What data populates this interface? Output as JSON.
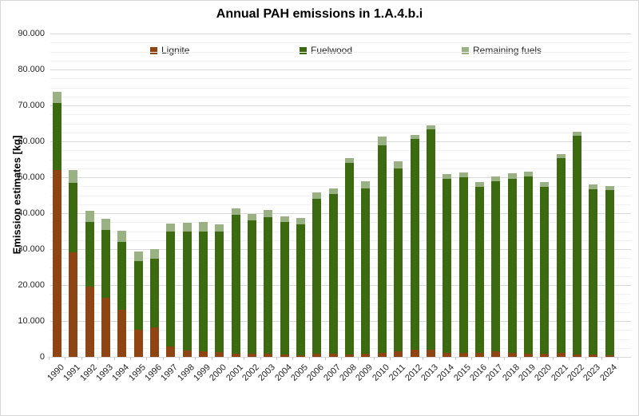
{
  "page": {
    "background": "#FFFFFF",
    "border_color": "#D8D8D8"
  },
  "chart_data": {
    "type": "bar",
    "stacked": true,
    "title": "Annual PAH emissions in 1.A.4.b.i",
    "xlabel": "",
    "ylabel": "Emission estimates [kg]",
    "ylim": [
      0,
      90000
    ],
    "ytick_interval": 10000,
    "minor_gridline_interval": 2500,
    "grid": "horizontal",
    "grid_color_major": "#D9D9D9",
    "grid_color_minor": "#F1F1F1",
    "legend_position": "top",
    "ytick_labels": [
      "0",
      "10.000",
      "20.000",
      "30.000",
      "40.000",
      "50.000",
      "60.000",
      "70.000",
      "80.000",
      "90.000"
    ],
    "categories": [
      1990,
      1991,
      1992,
      1993,
      1994,
      1995,
      1996,
      1997,
      1998,
      1999,
      2000,
      2001,
      2002,
      2003,
      2004,
      2005,
      2006,
      2007,
      2008,
      2009,
      2010,
      2011,
      2012,
      2013,
      2014,
      2015,
      2016,
      2017,
      2018,
      2019,
      2020,
      2021,
      2022,
      2023,
      2024
    ],
    "series": [
      {
        "name": "Lignite",
        "color": "#8F4413",
        "values": [
          52000,
          29100,
          19500,
          16500,
          13200,
          7600,
          8200,
          2900,
          1800,
          1500,
          1300,
          900,
          1000,
          800,
          600,
          500,
          800,
          800,
          700,
          800,
          1100,
          1500,
          1900,
          1900,
          1200,
          1200,
          1200,
          1500,
          1200,
          1000,
          1000,
          1200,
          700,
          600,
          400
        ]
      },
      {
        "name": "Fuelwood",
        "color": "#3C6A10",
        "values": [
          18600,
          19300,
          18100,
          18900,
          18900,
          19100,
          19100,
          31900,
          33100,
          33500,
          33500,
          38600,
          37000,
          38200,
          36900,
          36500,
          43100,
          44500,
          53200,
          46200,
          57800,
          51000,
          58700,
          61500,
          48400,
          48700,
          46200,
          47400,
          48400,
          49200,
          46300,
          54100,
          60800,
          46100,
          46000
        ]
      },
      {
        "name": "Remaining fuels",
        "color": "#9AB283",
        "values": [
          3200,
          3500,
          3100,
          3100,
          3000,
          2600,
          2600,
          2400,
          2400,
          2500,
          2200,
          1900,
          1800,
          1800,
          1600,
          1700,
          1900,
          1700,
          1500,
          1800,
          2400,
          1900,
          1100,
          1000,
          1400,
          1400,
          1200,
          1300,
          1500,
          1400,
          1300,
          1200,
          1200,
          1200,
          1200
        ]
      }
    ]
  }
}
